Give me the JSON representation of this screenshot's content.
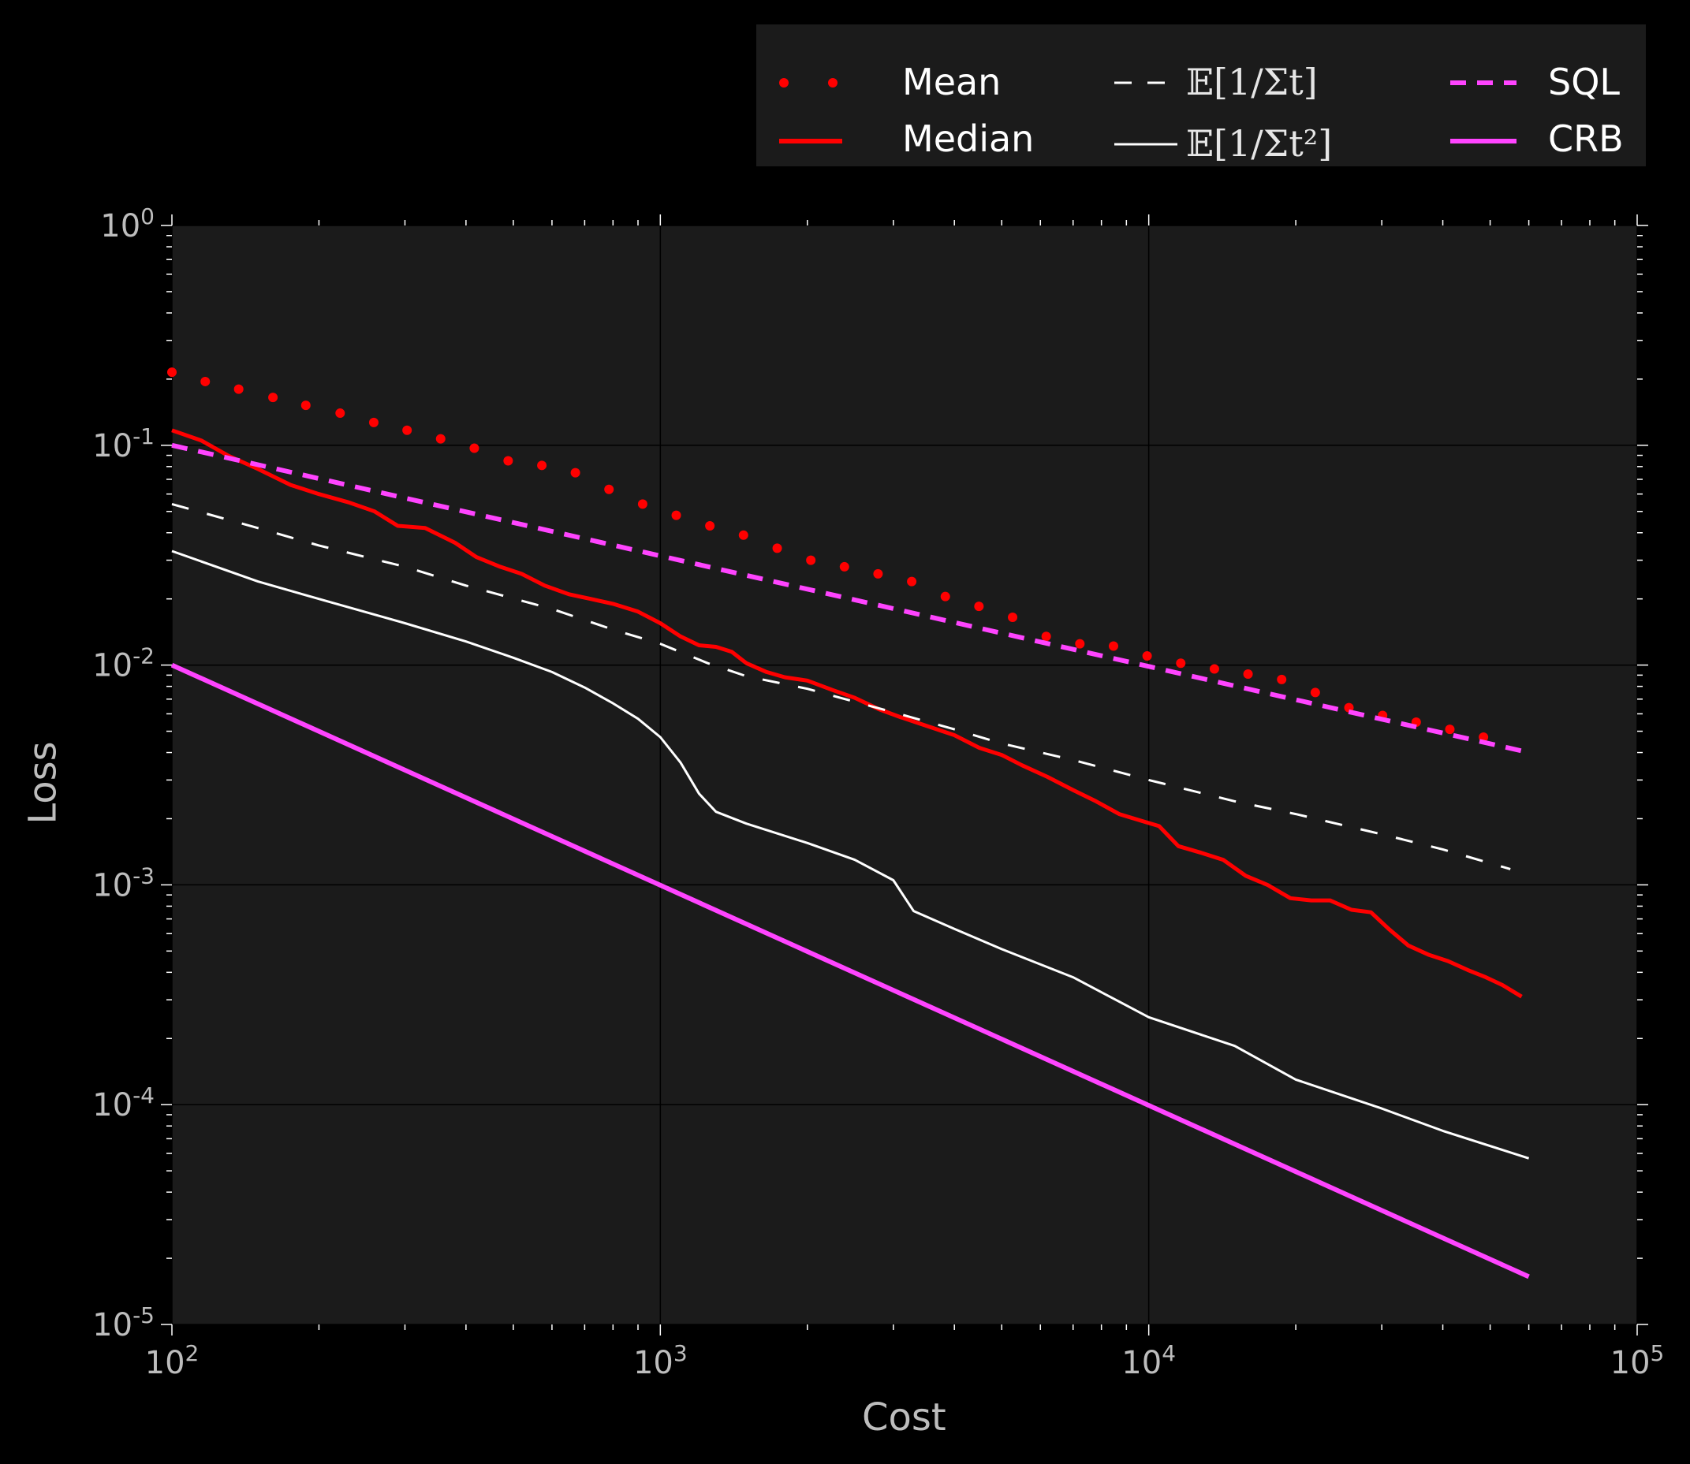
{
  "chart_data": {
    "type": "line",
    "xlabel": "Cost",
    "ylabel": "Loss",
    "xscale": "log",
    "yscale": "log",
    "xlim": [
      100,
      100000
    ],
    "ylim": [
      1e-05,
      1
    ],
    "grid": true,
    "legend_position": "top-right, above plot",
    "background": "#1b1b1b",
    "x_tick_labels": [
      "10^2",
      "10^3",
      "10^4",
      "10^5"
    ],
    "y_tick_labels": [
      "10^-5",
      "10^-4",
      "10^-3",
      "10^-2",
      "10^-1",
      "10^0"
    ],
    "series": [
      {
        "name": "Mean",
        "style": "dotted markers",
        "color": "#ff0000",
        "points": [
          [
            100,
            0.215
          ],
          [
            117,
            0.195
          ],
          [
            137,
            0.18
          ],
          [
            161,
            0.165
          ],
          [
            188,
            0.152
          ],
          [
            221,
            0.14
          ],
          [
            259,
            0.127
          ],
          [
            303,
            0.117
          ],
          [
            355,
            0.107
          ],
          [
            416,
            0.097
          ],
          [
            488,
            0.085
          ],
          [
            572,
            0.081
          ],
          [
            670,
            0.075
          ],
          [
            785,
            0.063
          ],
          [
            920,
            0.054
          ],
          [
            1078,
            0.048
          ],
          [
            1263,
            0.043
          ],
          [
            1480,
            0.039
          ],
          [
            1735,
            0.034
          ],
          [
            2033,
            0.03
          ],
          [
            2382,
            0.028
          ],
          [
            2791,
            0.026
          ],
          [
            3271,
            0.024
          ],
          [
            3833,
            0.0205
          ],
          [
            4491,
            0.0185
          ],
          [
            5263,
            0.0165
          ],
          [
            6167,
            0.0135
          ],
          [
            7227,
            0.0125
          ],
          [
            8469,
            0.0122
          ],
          [
            9924,
            0.011
          ],
          [
            11629,
            0.0102
          ],
          [
            13628,
            0.0096
          ],
          [
            15969,
            0.0091
          ],
          [
            18713,
            0.0086
          ],
          [
            21928,
            0.0075
          ],
          [
            25696,
            0.0064
          ],
          [
            30112,
            0.0059
          ],
          [
            35286,
            0.0055
          ],
          [
            41349,
            0.0051
          ],
          [
            48454,
            0.0047
          ]
        ]
      },
      {
        "name": "Median",
        "style": "solid",
        "color": "#ff0000",
        "points": [
          [
            100,
            0.117
          ],
          [
            115,
            0.105
          ],
          [
            130,
            0.09
          ],
          [
            150,
            0.078
          ],
          [
            175,
            0.066
          ],
          [
            200,
            0.06
          ],
          [
            230,
            0.055
          ],
          [
            260,
            0.05
          ],
          [
            290,
            0.043
          ],
          [
            330,
            0.042
          ],
          [
            380,
            0.036
          ],
          [
            420,
            0.031
          ],
          [
            470,
            0.028
          ],
          [
            520,
            0.026
          ],
          [
            580,
            0.023
          ],
          [
            650,
            0.021
          ],
          [
            720,
            0.02
          ],
          [
            800,
            0.019
          ],
          [
            900,
            0.0175
          ],
          [
            1000,
            0.0155
          ],
          [
            1100,
            0.0135
          ],
          [
            1200,
            0.0123
          ],
          [
            1300,
            0.0121
          ],
          [
            1400,
            0.0115
          ],
          [
            1500,
            0.0102
          ],
          [
            1650,
            0.0093
          ],
          [
            1800,
            0.0088
          ],
          [
            2000,
            0.0085
          ],
          [
            2250,
            0.0077
          ],
          [
            2500,
            0.0071
          ],
          [
            2800,
            0.0063
          ],
          [
            3100,
            0.0058
          ],
          [
            3500,
            0.0053
          ],
          [
            4000,
            0.0048
          ],
          [
            4500,
            0.0042
          ],
          [
            5000,
            0.0039
          ],
          [
            5500,
            0.0035
          ],
          [
            6200,
            0.0031
          ],
          [
            7000,
            0.0027
          ],
          [
            7800,
            0.0024
          ],
          [
            8700,
            0.0021
          ],
          [
            9700,
            0.00195
          ],
          [
            10500,
            0.00185
          ],
          [
            11500,
            0.0015
          ],
          [
            12800,
            0.0014
          ],
          [
            14200,
            0.0013
          ],
          [
            15800,
            0.0011
          ],
          [
            17500,
            0.001
          ],
          [
            19500,
            0.00087
          ],
          [
            21500,
            0.00085
          ],
          [
            23500,
            0.00085
          ],
          [
            26000,
            0.00077
          ],
          [
            28500,
            0.00075
          ],
          [
            31000,
            0.00063
          ],
          [
            34000,
            0.00053
          ],
          [
            37500,
            0.00048
          ],
          [
            41000,
            0.00045
          ],
          [
            45000,
            0.00041
          ],
          [
            49000,
            0.00038
          ],
          [
            53000,
            0.00035
          ],
          [
            58000,
            0.00031
          ]
        ]
      },
      {
        "name": "𝔼[1/Σt]",
        "style": "dashed",
        "color": "#ffffff",
        "points": [
          [
            100,
            0.054
          ],
          [
            150,
            0.042
          ],
          [
            200,
            0.035
          ],
          [
            300,
            0.028
          ],
          [
            400,
            0.023
          ],
          [
            600,
            0.018
          ],
          [
            800,
            0.0145
          ],
          [
            1000,
            0.0125
          ],
          [
            1250,
            0.0102
          ],
          [
            1500,
            0.0089
          ],
          [
            2000,
            0.0078
          ],
          [
            3000,
            0.0061
          ],
          [
            4000,
            0.0051
          ],
          [
            5000,
            0.0044
          ],
          [
            7000,
            0.0037
          ],
          [
            10000,
            0.003
          ],
          [
            15000,
            0.0024
          ],
          [
            20000,
            0.0021
          ],
          [
            30000,
            0.0017
          ],
          [
            40000,
            0.00145
          ],
          [
            55000,
            0.00118
          ]
        ]
      },
      {
        "name": "𝔼[1/Σt²]",
        "style": "solid thin",
        "color": "#ffffff",
        "points": [
          [
            100,
            0.033
          ],
          [
            150,
            0.024
          ],
          [
            200,
            0.02
          ],
          [
            300,
            0.0155
          ],
          [
            400,
            0.0128
          ],
          [
            500,
            0.0108
          ],
          [
            600,
            0.0093
          ],
          [
            700,
            0.0079
          ],
          [
            800,
            0.0067
          ],
          [
            900,
            0.0057
          ],
          [
            1000,
            0.0047
          ],
          [
            1100,
            0.0036
          ],
          [
            1200,
            0.0026
          ],
          [
            1300,
            0.00215
          ],
          [
            1500,
            0.0019
          ],
          [
            2000,
            0.00155
          ],
          [
            2500,
            0.0013
          ],
          [
            3000,
            0.00105
          ],
          [
            3300,
            0.00076
          ],
          [
            4000,
            0.00063
          ],
          [
            5000,
            0.00051
          ],
          [
            7000,
            0.00038
          ],
          [
            10000,
            0.00025
          ],
          [
            15000,
            0.000185
          ],
          [
            20000,
            0.00013
          ],
          [
            30000,
            9.6e-05
          ],
          [
            40000,
            7.6e-05
          ],
          [
            60000,
            5.7e-05
          ]
        ]
      },
      {
        "name": "SQL",
        "style": "dashed thick",
        "color": "#ff44ff",
        "points": [
          [
            100,
            0.1
          ],
          [
            60000,
            0.004
          ]
        ]
      },
      {
        "name": "CRB",
        "style": "solid thick",
        "color": "#ff44ff",
        "points": [
          [
            100,
            0.01
          ],
          [
            60000,
            1.65e-05
          ]
        ]
      }
    ]
  },
  "legend": {
    "items": [
      "Mean",
      "Median",
      "𝔼[1/Σt]",
      "𝔼[1/Σt²]",
      "SQL",
      "CRB"
    ]
  }
}
